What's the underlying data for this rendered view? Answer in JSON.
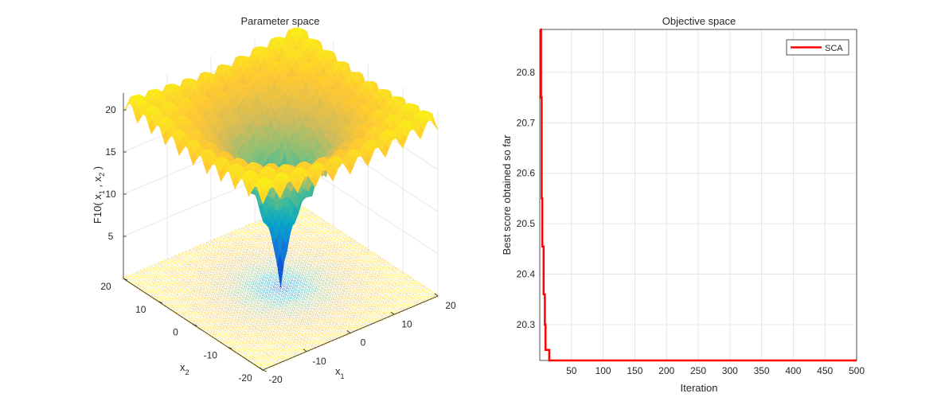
{
  "chart_data": [
    {
      "type": "surface",
      "title": "Parameter space",
      "xlabel": "x_1",
      "ylabel": "x_2",
      "zlabel": "F10( x_1 , x_2 )",
      "function": "Ackley",
      "xlim": [
        -20,
        20
      ],
      "ylim": [
        -20,
        20
      ],
      "zlim": [
        0,
        22
      ],
      "x_ticks": [
        "-20",
        "-10",
        "0",
        "10",
        "20"
      ],
      "y_ticks": [
        "20",
        "10",
        "0",
        "-10",
        "-20"
      ],
      "z_ticks": [
        "5",
        "10",
        "15",
        "20"
      ],
      "colormap": "parula",
      "floor_contour": true,
      "grid": true
    },
    {
      "type": "line",
      "title": "Objective space",
      "xlabel": "Iteration",
      "ylabel": "Best score obtained so far",
      "xlim": [
        1,
        500
      ],
      "ylim": [
        20.229,
        20.885
      ],
      "x_ticks": [
        "50",
        "100",
        "150",
        "200",
        "250",
        "300",
        "350",
        "400",
        "450",
        "500"
      ],
      "y_ticks": [
        "20.3",
        "20.4",
        "20.5",
        "20.6",
        "20.7",
        "20.8"
      ],
      "grid": true,
      "legend_placement": "top-right",
      "series": [
        {
          "name": "SCA",
          "color": "#ff0000",
          "x": [
            1,
            2,
            3,
            4,
            5,
            6,
            7,
            8,
            9,
            10,
            11,
            12,
            13,
            14,
            15,
            500
          ],
          "y": [
            20.885,
            20.75,
            20.55,
            20.455,
            20.455,
            20.36,
            20.36,
            20.3,
            20.25,
            20.25,
            20.25,
            20.25,
            20.25,
            20.25,
            20.229,
            20.229
          ]
        }
      ]
    }
  ]
}
